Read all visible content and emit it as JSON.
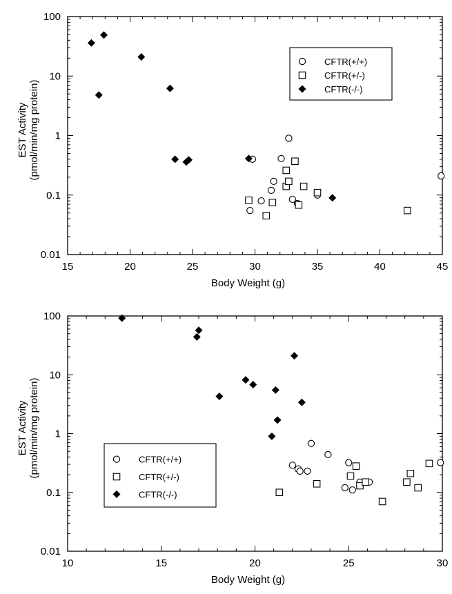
{
  "chart_data": [
    {
      "type": "scatter",
      "xlabel": "Body Weight (g)",
      "ylabel_lines": [
        "EST Activity",
        "(pmol/min/mg protein)"
      ],
      "xlim": [
        15,
        45
      ],
      "ylim": [
        0.01,
        100
      ],
      "yscale": "log",
      "xticks": [
        15,
        20,
        25,
        30,
        35,
        40,
        45
      ],
      "xtick_labels": [
        "15",
        "20",
        "25",
        "30",
        "35",
        "40",
        "45"
      ],
      "yticks": [
        0.01,
        0.1,
        1,
        10,
        100
      ],
      "ytick_labels": [
        "0.01",
        "0.1",
        "1",
        "10",
        "100"
      ],
      "legend_position": "top-right",
      "series": [
        {
          "name": "CFTR(+/+)",
          "marker": "open-circle",
          "points": [
            [
              29.6,
              0.055
            ],
            [
              29.8,
              0.4
            ],
            [
              30.5,
              0.08
            ],
            [
              31.3,
              0.12
            ],
            [
              31.5,
              0.17
            ],
            [
              32.1,
              0.41
            ],
            [
              32.7,
              0.9
            ],
            [
              33.0,
              0.085
            ],
            [
              33.4,
              0.072
            ],
            [
              35.0,
              0.1
            ],
            [
              44.9,
              0.21
            ]
          ]
        },
        {
          "name": "CFTR(+/-)",
          "marker": "open-square",
          "points": [
            [
              29.5,
              0.082
            ],
            [
              30.9,
              0.045
            ],
            [
              31.4,
              0.075
            ],
            [
              32.5,
              0.14
            ],
            [
              32.5,
              0.26
            ],
            [
              32.7,
              0.17
            ],
            [
              33.2,
              0.37
            ],
            [
              33.5,
              0.068
            ],
            [
              33.9,
              0.14
            ],
            [
              35.0,
              0.11
            ],
            [
              42.2,
              0.055
            ]
          ]
        },
        {
          "name": "CFTR(-/-)",
          "marker": "filled-diamond",
          "points": [
            [
              16.9,
              36
            ],
            [
              17.5,
              4.8
            ],
            [
              17.9,
              49
            ],
            [
              20.9,
              21
            ],
            [
              23.2,
              6.2
            ],
            [
              23.6,
              0.4
            ],
            [
              24.5,
              0.36
            ],
            [
              24.7,
              0.39
            ],
            [
              29.5,
              0.41
            ],
            [
              36.2,
              0.09
            ]
          ]
        }
      ]
    },
    {
      "type": "scatter",
      "xlabel": "Body Weight (g)",
      "ylabel_lines": [
        "EST Activity",
        "(pmol/min/mg protein)"
      ],
      "xlim": [
        10,
        30
      ],
      "ylim": [
        0.01,
        100
      ],
      "yscale": "log",
      "xticks": [
        10,
        15,
        20,
        25,
        30
      ],
      "xtick_labels": [
        "10",
        "15",
        "20",
        "25",
        "30"
      ],
      "yticks": [
        0.01,
        0.1,
        1,
        10,
        100
      ],
      "ytick_labels": [
        "0.01",
        "0.1",
        "1",
        "10",
        "100"
      ],
      "legend_position": "bottom-left",
      "series": [
        {
          "name": "CFTR(+/+)",
          "marker": "open-circle",
          "points": [
            [
              22.0,
              0.29
            ],
            [
              22.3,
              0.25
            ],
            [
              22.4,
              0.23
            ],
            [
              22.8,
              0.23
            ],
            [
              23.0,
              0.68
            ],
            [
              23.9,
              0.44
            ],
            [
              24.8,
              0.12
            ],
            [
              25.0,
              0.32
            ],
            [
              25.2,
              0.11
            ],
            [
              25.6,
              0.15
            ],
            [
              26.1,
              0.15
            ],
            [
              29.9,
              0.32
            ]
          ]
        },
        {
          "name": "CFTR(+/-)",
          "marker": "open-square",
          "points": [
            [
              21.3,
              0.1
            ],
            [
              23.3,
              0.14
            ],
            [
              25.1,
              0.19
            ],
            [
              25.4,
              0.28
            ],
            [
              25.6,
              0.13
            ],
            [
              25.9,
              0.15
            ],
            [
              26.8,
              0.07
            ],
            [
              28.1,
              0.15
            ],
            [
              28.3,
              0.21
            ],
            [
              28.7,
              0.12
            ],
            [
              29.3,
              0.31
            ]
          ]
        },
        {
          "name": "CFTR(-/-)",
          "marker": "filled-diamond",
          "points": [
            [
              12.9,
              92
            ],
            [
              16.9,
              44
            ],
            [
              17.0,
              57
            ],
            [
              18.1,
              4.3
            ],
            [
              19.5,
              8.2
            ],
            [
              19.9,
              6.8
            ],
            [
              20.9,
              0.9
            ],
            [
              21.1,
              5.5
            ],
            [
              21.2,
              1.7
            ],
            [
              22.1,
              21
            ],
            [
              22.5,
              3.4
            ]
          ]
        }
      ]
    }
  ]
}
